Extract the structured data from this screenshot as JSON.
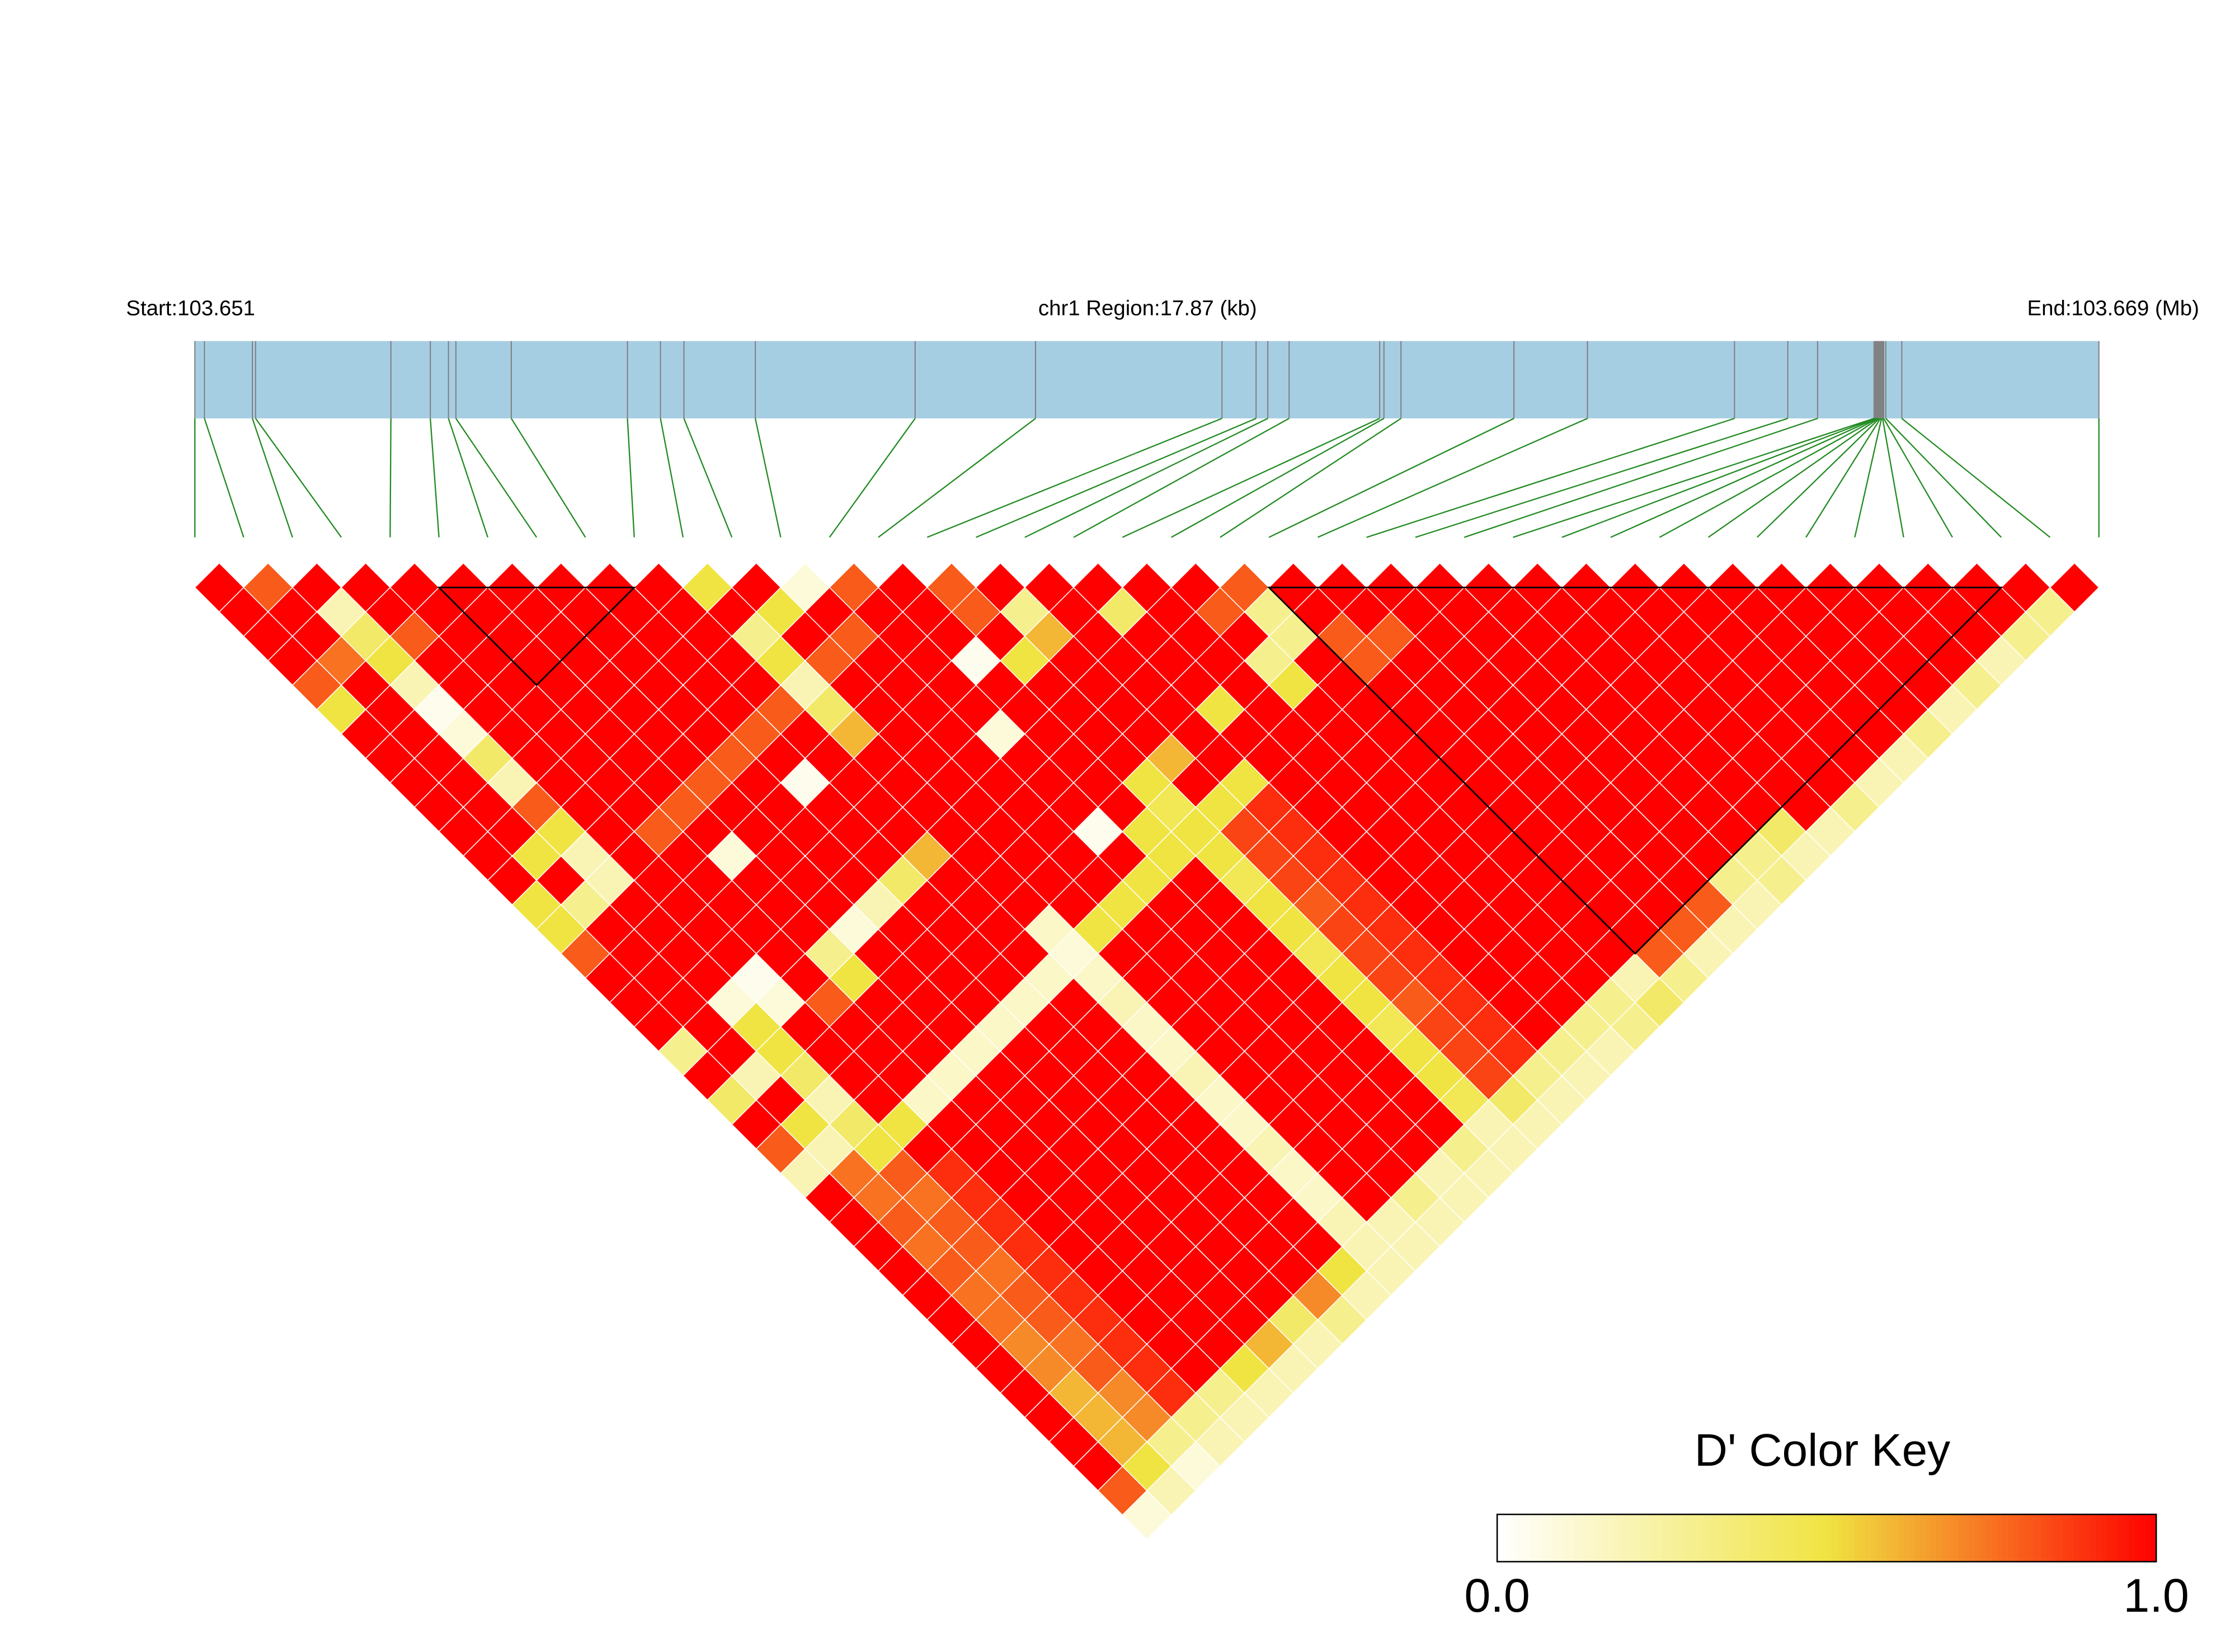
{
  "chart_data": {
    "type": "ld_heatmap",
    "start_label": "Start:103.651",
    "region_label": "chr1 Region:17.87 (kb)",
    "end_label": "End:103.669 (Mb)",
    "key_title": "D' Color Key",
    "xlim": [
      0,
      17.87
    ],
    "snp_positions": [
      0,
      0.09,
      0.54,
      0.57,
      1.84,
      2.21,
      2.38,
      2.45,
      2.97,
      4.06,
      4.37,
      4.59,
      5.26,
      6.76,
      7.89,
      9.64,
      9.96,
      10.07,
      10.27,
      11.12,
      11.16,
      11.32,
      12.38,
      13.07,
      14.45,
      14.95,
      15.23,
      15.76,
      15.77,
      15.78,
      15.79,
      15.8,
      15.81,
      15.82,
      15.83,
      15.84,
      15.85,
      15.87,
      16.02,
      17.87
    ],
    "clim": [
      0,
      1
    ],
    "key_ticks": [
      {
        "value": 0,
        "label": "0.0"
      },
      {
        "value": 1,
        "label": "1.0"
      }
    ],
    "colors": [
      "#ffffff",
      "#f0e442",
      "#ff0000"
    ],
    "track_color": "#a6cee3",
    "snp_line_color": "#808080",
    "link_color": "#228b22",
    "blocks": [
      [
        5,
        9
      ],
      [
        22,
        37
      ]
    ],
    "ld": [
      [
        1,
        1,
        1,
        1,
        0.8,
        0.5,
        1,
        1,
        1,
        1,
        1,
        1,
        1,
        0.5,
        0.5,
        0.8,
        1,
        1,
        1,
        0.3,
        1,
        0.4,
        1,
        0.8,
        0.2,
        1,
        1,
        1,
        1,
        1,
        1,
        1,
        1,
        1,
        1,
        1,
        1,
        0.8,
        0.1
      ],
      [
        0.8,
        1,
        1,
        0.75,
        1,
        1,
        1,
        1,
        1,
        1,
        1,
        0.5,
        1,
        0.3,
        1,
        1,
        1,
        1,
        1,
        1,
        0.2,
        1,
        0.5,
        0.2,
        0.75,
        0.75,
        0.8,
        0.75,
        0.8,
        0.75,
        0.75,
        0.7,
        0.7,
        0.6,
        0.6,
        0.6,
        0.5,
        0.2
      ],
      [
        1,
        0.2,
        0.4,
        0.5,
        0.2,
        0.05,
        0.1,
        0.4,
        0.2,
        0.8,
        0.5,
        0.2,
        0.2,
        1,
        1,
        1,
        1,
        0.1,
        0.5,
        0.5,
        0.4,
        0.2,
        0.4,
        0.5,
        0.8,
        0.75,
        0.8,
        0.8,
        0.75,
        0.8,
        0.8,
        0.75,
        0.8,
        0.7,
        0.7,
        0.3,
        0.1
      ],
      [
        1,
        1,
        0.8,
        1,
        1,
        1,
        1,
        1,
        1,
        1,
        1,
        1,
        1,
        1,
        1,
        1,
        0.05,
        0.1,
        1,
        1,
        1,
        1,
        0.5,
        1,
        0.9,
        0.9,
        0.9,
        0.9,
        0.9,
        0.9,
        0.9,
        0.9,
        0.9,
        0.9,
        0.3,
        0.2
      ],
      [
        1,
        1,
        1,
        1,
        1,
        1,
        1,
        1,
        1,
        1,
        0.8,
        1,
        1,
        1,
        1,
        1,
        1,
        0.8,
        1,
        1,
        1,
        0.15,
        1,
        1,
        1,
        1,
        1,
        1,
        1,
        1,
        1,
        1,
        1,
        0.3,
        0.2
      ],
      [
        1,
        1,
        1,
        1,
        1,
        1,
        1,
        1,
        1,
        0.8,
        1,
        0.1,
        1,
        1,
        1,
        0.3,
        0.5,
        1,
        1,
        1,
        0.15,
        1,
        1,
        1,
        1,
        1,
        1,
        1,
        1,
        1,
        1,
        1,
        0.5,
        0.2
      ],
      [
        1,
        1,
        1,
        1,
        1,
        1,
        1,
        1,
        0.8,
        1,
        1,
        1,
        1,
        1,
        0.1,
        1,
        1,
        1,
        1,
        0.15,
        1,
        1,
        1,
        1,
        1,
        1,
        1,
        1,
        1,
        1,
        1,
        0.6,
        0.2
      ],
      [
        1,
        1,
        1,
        1,
        1,
        1,
        1,
        0.8,
        1,
        1,
        1,
        1,
        1,
        0.2,
        1,
        1,
        1,
        1,
        0.15,
        1,
        1,
        1,
        1,
        1,
        1,
        1,
        1,
        1,
        1,
        1,
        0.4,
        0.2
      ],
      [
        1,
        1,
        1,
        1,
        1,
        1,
        0.8,
        1,
        0.05,
        1,
        1,
        1,
        0.4,
        1,
        1,
        1,
        1,
        0.15,
        1,
        1,
        1,
        1,
        1,
        1,
        1,
        1,
        1,
        1,
        1,
        0.7,
        0.3
      ],
      [
        1,
        1,
        1,
        1,
        1,
        0.8,
        1,
        1,
        1,
        1,
        1,
        0.6,
        1,
        1,
        1,
        1,
        0.15,
        1,
        1,
        1,
        1,
        1,
        1,
        1,
        1,
        1,
        1,
        1,
        0.5,
        0.2
      ],
      [
        0.5,
        1,
        0.3,
        0.5,
        0.2,
        0.4,
        0.6,
        1,
        1,
        1,
        1,
        1,
        1,
        1,
        0.15,
        0.1,
        0.15,
        0.2,
        0.15,
        0.15,
        0.2,
        0.15,
        0.15,
        0.2,
        0.15,
        0.15,
        0.2,
        0.2,
        0.2
      ],
      [
        1,
        0.5,
        1,
        0.8,
        1,
        1,
        1,
        1,
        1,
        1,
        1,
        1,
        1,
        1,
        0.5,
        1,
        1,
        1,
        1,
        1,
        1,
        1,
        1,
        1,
        1,
        1,
        0.2,
        0.2
      ],
      [
        0.1,
        1,
        0.8,
        1,
        1,
        1,
        1,
        1,
        1,
        1,
        1,
        1,
        1,
        0.5,
        1,
        1,
        1,
        1,
        1,
        1,
        1,
        1,
        1,
        1,
        1,
        0.3,
        0.2
      ],
      [
        0.8,
        1,
        1,
        1,
        1,
        1,
        0.1,
        1,
        1,
        1,
        0.05,
        1,
        0.5,
        1,
        1,
        1,
        1,
        1,
        1,
        1,
        1,
        1,
        1,
        1,
        0.2,
        0.2
      ],
      [
        1,
        1,
        1,
        0.05,
        1,
        1,
        1,
        1,
        1,
        1,
        0.5,
        0.5,
        1,
        1,
        1,
        1,
        1,
        1,
        1,
        1,
        1,
        1,
        1,
        0.3,
        0.2
      ],
      [
        0.8,
        0.8,
        1,
        0.5,
        1,
        1,
        1,
        1,
        0.5,
        0.45,
        0.5,
        0.5,
        0.45,
        0.5,
        0.5,
        0.45,
        0.5,
        0.5,
        0.45,
        0.5,
        0.5,
        0.45,
        0.2,
        0.2
      ],
      [
        1,
        0.3,
        0.6,
        1,
        1,
        1,
        1,
        0.6,
        1,
        0.5,
        0.85,
        0.85,
        0.85,
        0.8,
        0.85,
        0.85,
        0.85,
        0.8,
        0.85,
        0.85,
        0.85,
        0.4,
        0.2
      ],
      [
        1,
        1,
        1,
        1,
        1,
        1,
        1,
        1,
        0.5,
        0.9,
        0.9,
        0.9,
        0.9,
        0.9,
        0.9,
        0.9,
        0.9,
        0.9,
        0.9,
        0.9,
        0.3,
        0.2
      ],
      [
        1,
        0.4,
        1,
        1,
        1,
        0.5,
        1,
        1,
        1,
        1,
        1,
        1,
        1,
        1,
        1,
        1,
        1,
        1,
        1,
        0.3,
        0.2
      ],
      [
        1,
        1,
        1,
        1,
        1,
        1,
        1,
        1,
        1,
        1,
        1,
        1,
        1,
        1,
        1,
        1,
        1,
        1,
        0.3,
        0.2
      ],
      [
        1,
        0.8,
        1,
        0.3,
        0.5,
        1,
        1,
        1,
        1,
        1,
        1,
        1,
        1,
        1,
        1,
        1,
        1,
        0.3,
        0.3
      ],
      [
        0.8,
        0.3,
        0.3,
        1,
        1,
        1,
        1,
        1,
        1,
        1,
        1,
        1,
        1,
        1,
        1,
        1,
        0.2,
        0.4
      ],
      [
        1,
        1,
        0.8,
        0.8,
        1,
        1,
        1,
        1,
        1,
        1,
        1,
        1,
        1,
        1,
        1,
        0.8,
        0.3
      ],
      [
        1,
        1,
        0.8,
        1,
        1,
        1,
        1,
        1,
        1,
        1,
        1,
        1,
        1,
        1,
        0.8,
        0.2
      ],
      [
        1,
        1,
        1,
        1,
        1,
        1,
        1,
        1,
        1,
        1,
        1,
        1,
        1,
        0.8,
        0.2
      ],
      [
        1,
        1,
        1,
        1,
        1,
        1,
        1,
        1,
        1,
        1,
        1,
        1,
        0.3,
        0.2
      ],
      [
        1,
        1,
        1,
        1,
        1,
        1,
        1,
        1,
        1,
        1,
        1,
        0.3,
        0.3
      ],
      [
        1,
        1,
        1,
        1,
        1,
        1,
        1,
        1,
        1,
        1,
        0.4,
        0.2
      ],
      [
        1,
        1,
        1,
        1,
        1,
        1,
        1,
        1,
        1,
        1,
        0.2
      ],
      [
        1,
        1,
        1,
        1,
        1,
        1,
        1,
        1,
        1,
        0.3
      ],
      [
        1,
        1,
        1,
        1,
        1,
        1,
        1,
        1,
        0.2
      ],
      [
        1,
        1,
        1,
        1,
        1,
        1,
        1,
        0.2
      ],
      [
        1,
        1,
        1,
        1,
        1,
        1,
        0.3
      ],
      [
        1,
        1,
        1,
        1,
        1,
        0.2
      ],
      [
        1,
        1,
        1,
        1,
        0.3
      ],
      [
        1,
        1,
        1,
        0.2
      ],
      [
        1,
        1,
        0.3
      ],
      [
        1,
        0.3
      ],
      [
        1
      ]
    ]
  }
}
